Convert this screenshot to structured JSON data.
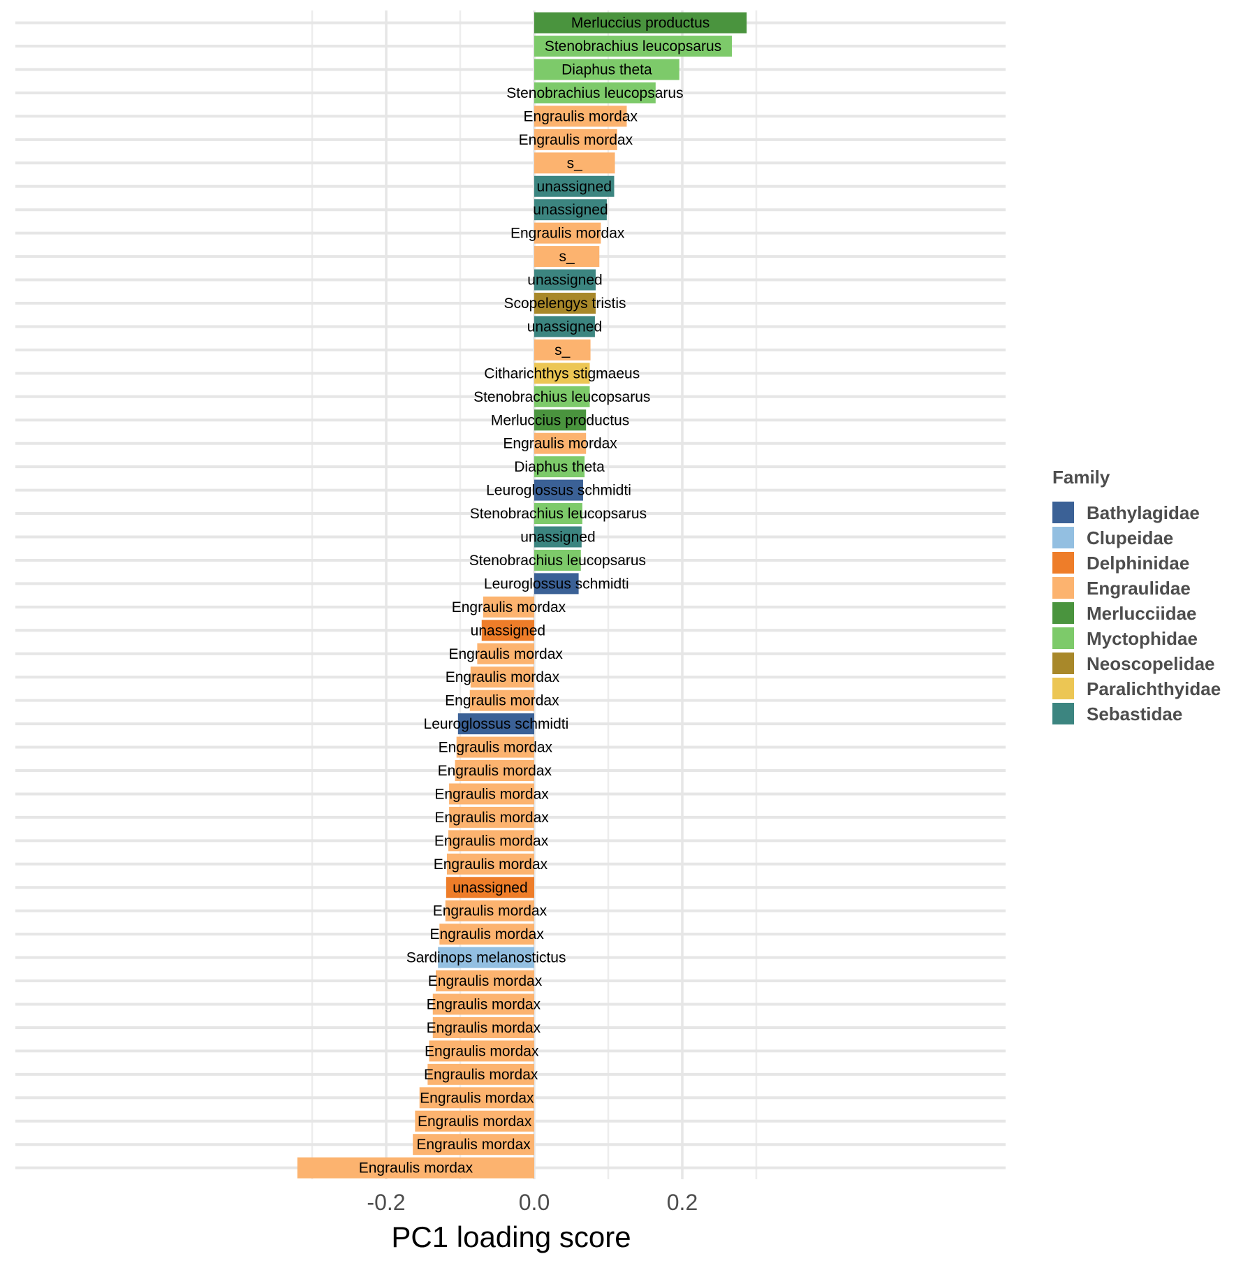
{
  "chart_data": {
    "type": "bar",
    "orientation": "horizontal",
    "title": "",
    "xlabel": "PC1 loading score",
    "ylabel": "",
    "xlim": [
      -0.355,
      0.32
    ],
    "xticks": [
      -0.2,
      0.0,
      0.2
    ],
    "xtick_labels": [
      "-0.2",
      "0.0",
      "0.2"
    ],
    "grid": true,
    "legend": {
      "title": "Family",
      "placement": "right",
      "entries": [
        {
          "name": "Bathylagidae",
          "color": "#3b6196"
        },
        {
          "name": "Clupeidae",
          "color": "#93bfe1"
        },
        {
          "name": "Delphinidae",
          "color": "#ee7d29"
        },
        {
          "name": "Engraulidae",
          "color": "#fcb36f"
        },
        {
          "name": "Merlucciidae",
          "color": "#4a943e"
        },
        {
          "name": "Myctophidae",
          "color": "#7dca6a"
        },
        {
          "name": "Neoscopelidae",
          "color": "#a8882a"
        },
        {
          "name": "Paralichthyidae",
          "color": "#ecc654"
        },
        {
          "name": "Sebastidae",
          "color": "#3c8580"
        }
      ]
    },
    "bars": [
      {
        "label": "Merluccius productus",
        "family": "Merlucciidae",
        "value": 0.287
      },
      {
        "label": "Stenobrachius leucopsarus",
        "family": "Myctophidae",
        "value": 0.267
      },
      {
        "label": "Diaphus theta",
        "family": "Myctophidae",
        "value": 0.196
      },
      {
        "label": "Stenobrachius leucopsarus",
        "family": "Myctophidae",
        "value": 0.164
      },
      {
        "label": "Engraulis mordax",
        "family": "Engraulidae",
        "value": 0.125
      },
      {
        "label": "Engraulis mordax",
        "family": "Engraulidae",
        "value": 0.112
      },
      {
        "label": "s_",
        "family": "Engraulidae",
        "value": 0.109
      },
      {
        "label": "unassigned",
        "family": "Sebastidae",
        "value": 0.108
      },
      {
        "label": "unassigned",
        "family": "Sebastidae",
        "value": 0.098
      },
      {
        "label": "Engraulis mordax",
        "family": "Engraulidae",
        "value": 0.09
      },
      {
        "label": "s_",
        "family": "Engraulidae",
        "value": 0.088
      },
      {
        "label": "unassigned",
        "family": "Sebastidae",
        "value": 0.083
      },
      {
        "label": "Scopelengys tristis",
        "family": "Neoscopelidae",
        "value": 0.083
      },
      {
        "label": "unassigned",
        "family": "Sebastidae",
        "value": 0.082
      },
      {
        "label": "s_",
        "family": "Engraulidae",
        "value": 0.076
      },
      {
        "label": "Citharichthys stigmaeus",
        "family": "Paralichthyidae",
        "value": 0.075
      },
      {
        "label": "Stenobrachius leucopsarus",
        "family": "Myctophidae",
        "value": 0.075
      },
      {
        "label": "Merluccius productus",
        "family": "Merlucciidae",
        "value": 0.07
      },
      {
        "label": "Engraulis mordax",
        "family": "Engraulidae",
        "value": 0.07
      },
      {
        "label": "Diaphus theta",
        "family": "Myctophidae",
        "value": 0.068
      },
      {
        "label": "Leuroglossus schmidti",
        "family": "Bathylagidae",
        "value": 0.066
      },
      {
        "label": "Stenobrachius leucopsarus",
        "family": "Myctophidae",
        "value": 0.065
      },
      {
        "label": "unassigned",
        "family": "Sebastidae",
        "value": 0.064
      },
      {
        "label": "Stenobrachius leucopsarus",
        "family": "Myctophidae",
        "value": 0.063
      },
      {
        "label": "Leuroglossus schmidti",
        "family": "Bathylagidae",
        "value": 0.06
      },
      {
        "label": "Engraulis mordax",
        "family": "Engraulidae",
        "value": -0.069
      },
      {
        "label": "unassigned",
        "family": "Delphinidae",
        "value": -0.071
      },
      {
        "label": "Engraulis mordax",
        "family": "Engraulidae",
        "value": -0.077
      },
      {
        "label": "Engraulis mordax",
        "family": "Engraulidae",
        "value": -0.086
      },
      {
        "label": "Engraulis mordax",
        "family": "Engraulidae",
        "value": -0.087
      },
      {
        "label": "Leuroglossus schmidti",
        "family": "Bathylagidae",
        "value": -0.103
      },
      {
        "label": "Engraulis mordax",
        "family": "Engraulidae",
        "value": -0.105
      },
      {
        "label": "Engraulis mordax",
        "family": "Engraulidae",
        "value": -0.107
      },
      {
        "label": "Engraulis mordax",
        "family": "Engraulidae",
        "value": -0.115
      },
      {
        "label": "Engraulis mordax",
        "family": "Engraulidae",
        "value": -0.115
      },
      {
        "label": "Engraulis mordax",
        "family": "Engraulidae",
        "value": -0.116
      },
      {
        "label": "Engraulis mordax",
        "family": "Engraulidae",
        "value": -0.118
      },
      {
        "label": "unassigned",
        "family": "Delphinidae",
        "value": -0.119
      },
      {
        "label": "Engraulis mordax",
        "family": "Engraulidae",
        "value": -0.12
      },
      {
        "label": "Engraulis mordax",
        "family": "Engraulidae",
        "value": -0.128
      },
      {
        "label": "Sardinops melanostictus",
        "family": "Clupeidae",
        "value": -0.13
      },
      {
        "label": "Engraulis mordax",
        "family": "Engraulidae",
        "value": -0.133
      },
      {
        "label": "Engraulis mordax",
        "family": "Engraulidae",
        "value": -0.137
      },
      {
        "label": "Engraulis mordax",
        "family": "Engraulidae",
        "value": -0.137
      },
      {
        "label": "Engraulis mordax",
        "family": "Engraulidae",
        "value": -0.142
      },
      {
        "label": "Engraulis mordax",
        "family": "Engraulidae",
        "value": -0.144
      },
      {
        "label": "Engraulis mordax",
        "family": "Engraulidae",
        "value": -0.155
      },
      {
        "label": "Engraulis mordax",
        "family": "Engraulidae",
        "value": -0.161
      },
      {
        "label": "Engraulis mordax",
        "family": "Engraulidae",
        "value": -0.164
      },
      {
        "label": "Engraulis mordax",
        "family": "Engraulidae",
        "value": -0.32
      }
    ]
  }
}
